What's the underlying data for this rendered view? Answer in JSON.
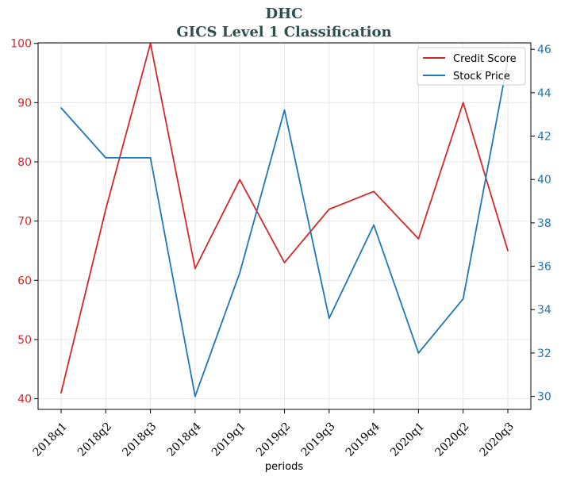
{
  "chart_data": {
    "type": "line",
    "title": "DHC",
    "subtitle": "GICS Level 1 Classification",
    "xlabel": "periods",
    "categories": [
      "2018q1",
      "2018q2",
      "2018q3",
      "2018q4",
      "2019q1",
      "2019q2",
      "2019q3",
      "2019q4",
      "2020q1",
      "2020q2",
      "2020q3"
    ],
    "grid": true,
    "legend_position": "top-right",
    "y_left": {
      "lim": [
        38.2,
        100.1
      ],
      "ticks": [
        40,
        50,
        60,
        70,
        80,
        90,
        100
      ],
      "color": "#d62728"
    },
    "y_right": {
      "lim": [
        29.4,
        46.3
      ],
      "ticks": [
        30,
        32,
        34,
        36,
        38,
        40,
        42,
        44,
        46
      ],
      "color": "#1f77b4"
    },
    "series": [
      {
        "name": "Credit Score",
        "axis": "left",
        "color": "#d62728",
        "values": [
          41,
          72,
          100,
          62,
          77,
          63,
          72,
          75,
          67,
          90,
          65
        ]
      },
      {
        "name": "Stock Price",
        "axis": "right",
        "color": "#1f77b4",
        "values": [
          43.3,
          41.0,
          41.0,
          30.0,
          35.7,
          43.2,
          33.6,
          37.9,
          32.0,
          34.5,
          45.5
        ]
      }
    ]
  }
}
